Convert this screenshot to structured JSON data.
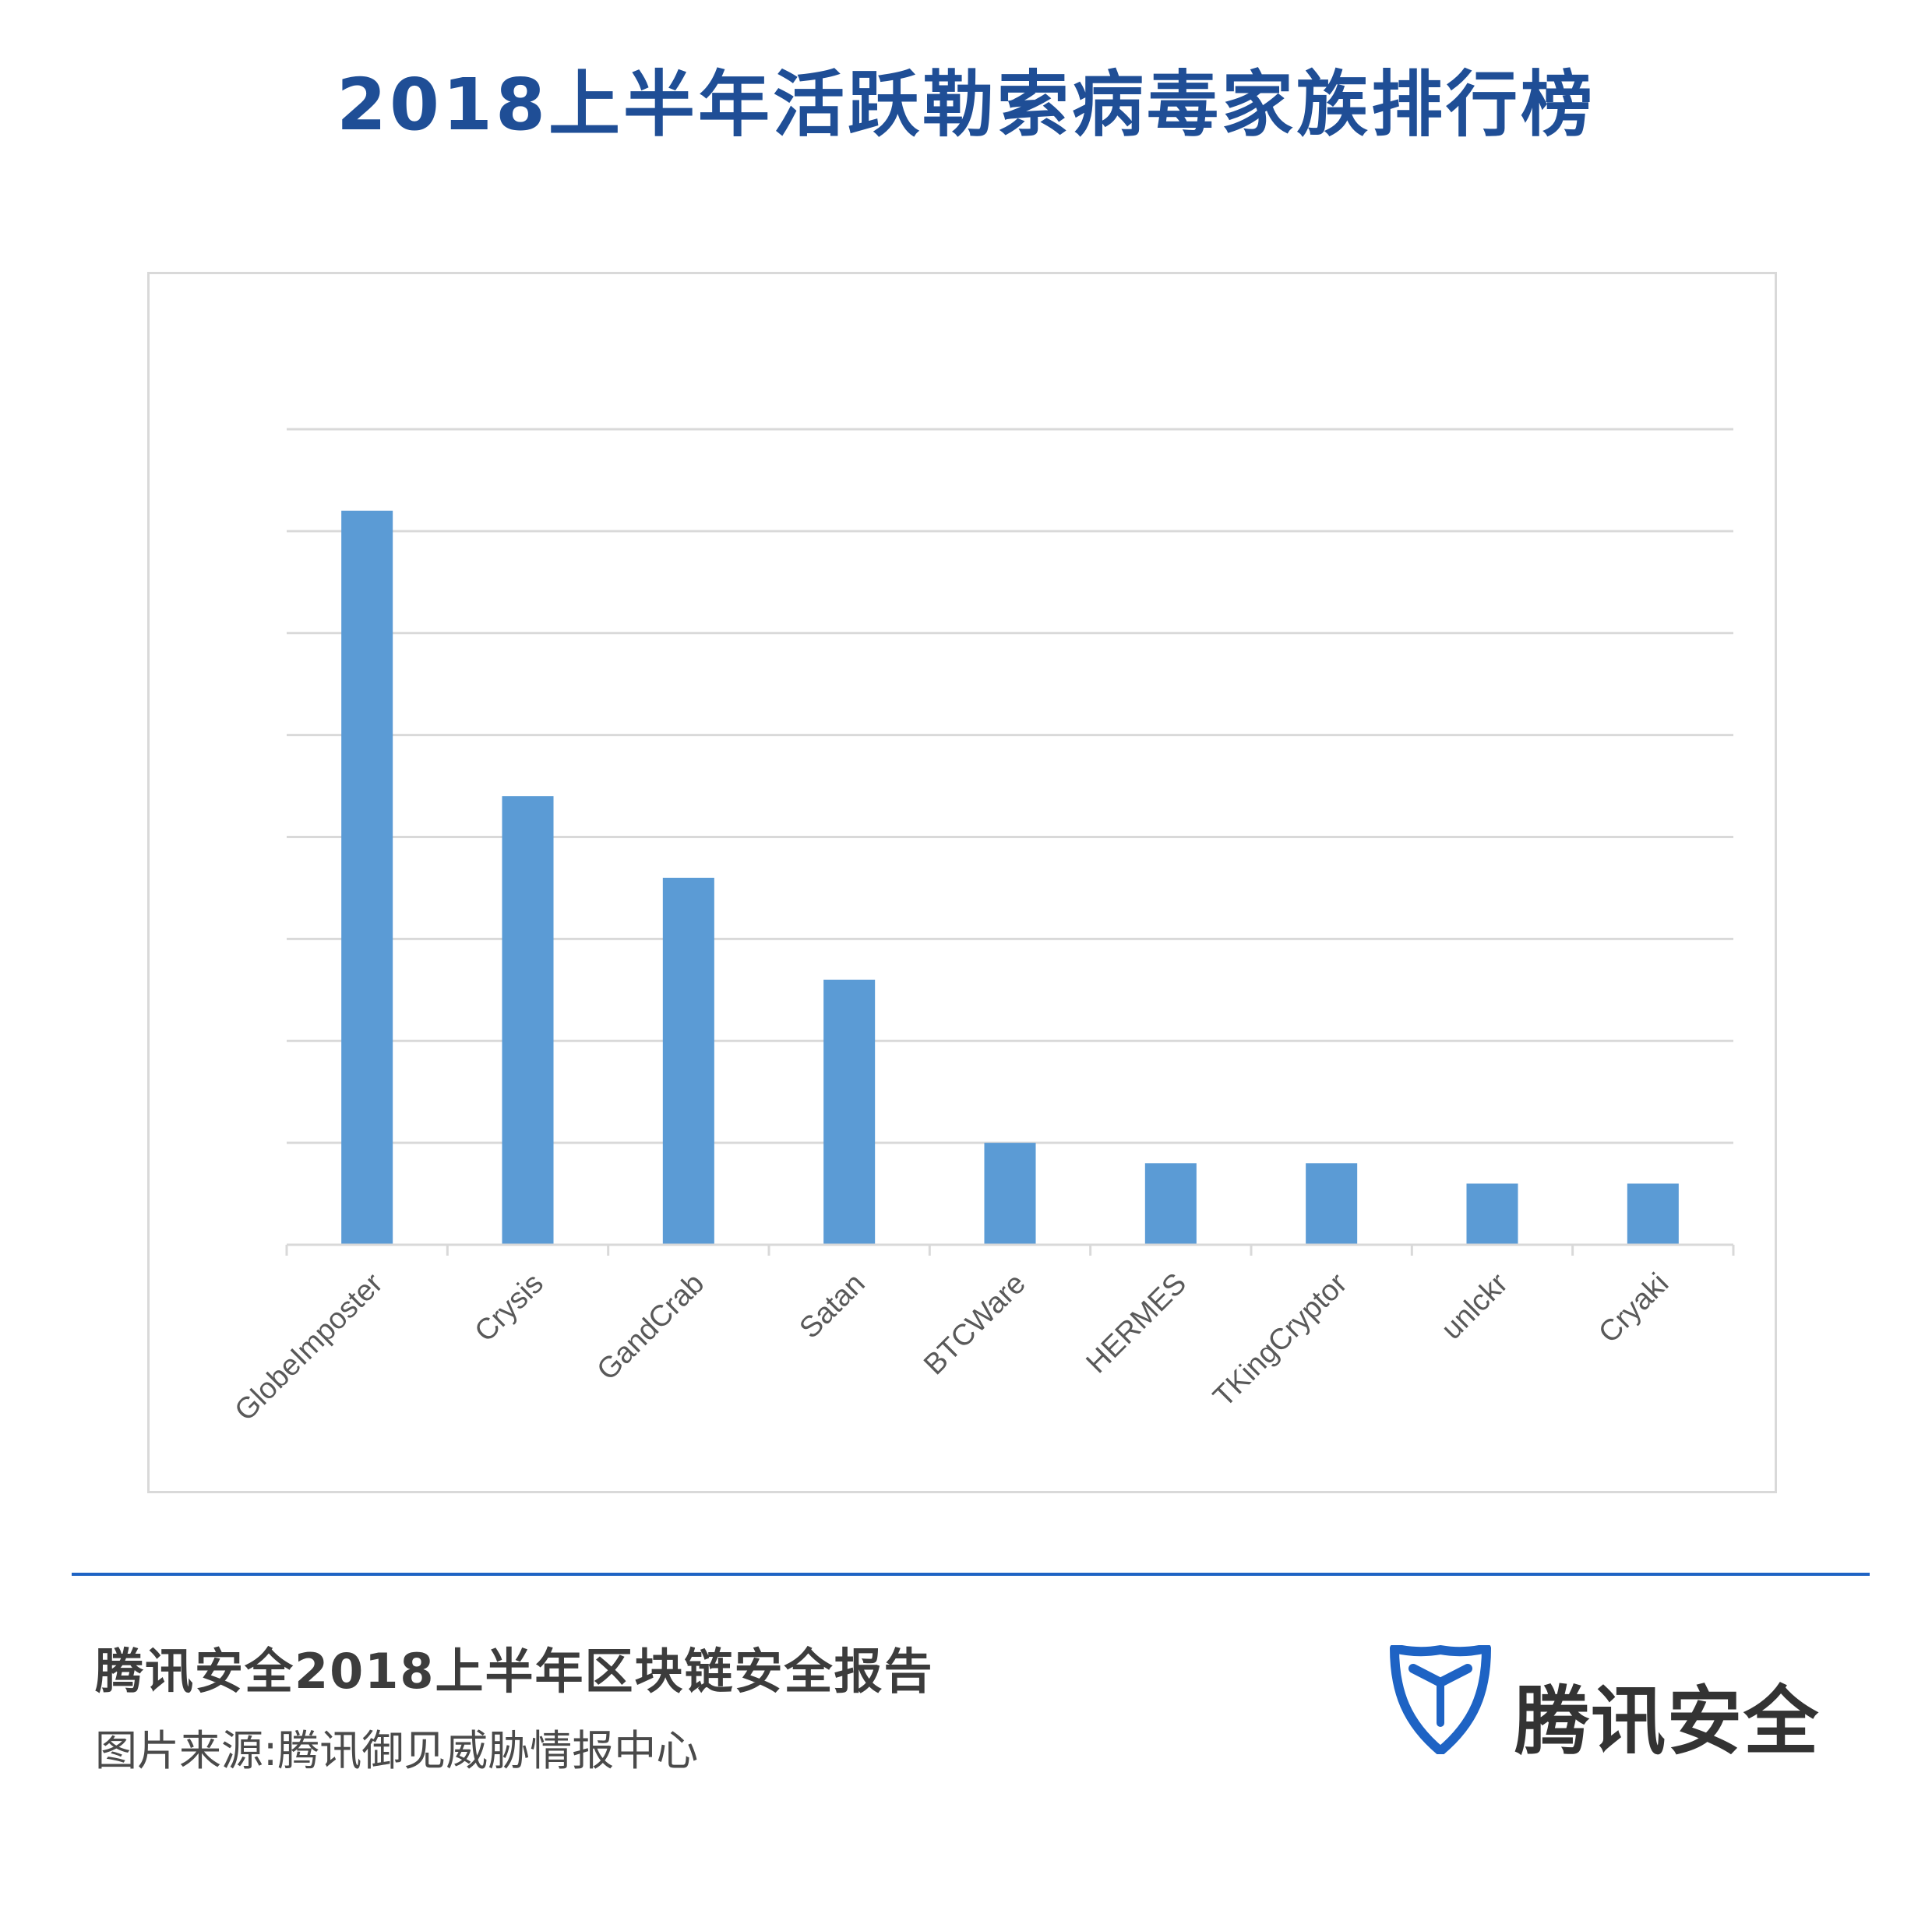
{
  "header": {
    "title": "2018上半年活跃勒索病毒家族排行榜"
  },
  "footer": {
    "report_title": "腾讯安全2018上半年区块链安全报告",
    "source": "图片来源:腾讯御见威胁情报中心",
    "brand_name": "腾讯安全",
    "brand_logo_icon": "tencent-security-shield-icon"
  },
  "colors": {
    "bar": "#5b9bd5",
    "title": "#1f4e96",
    "divider": "#1e63c4",
    "gridline": "#d9d9d9"
  },
  "chart_data": {
    "type": "bar",
    "categories": [
      "GlobeImposter",
      "Crysis",
      "GandCrab",
      "Satan",
      "BTCWare",
      "HERMES",
      "TKingCryptor",
      "unlckr",
      "Cryaki"
    ],
    "values": [
      7.2,
      4.4,
      3.6,
      2.6,
      1.0,
      0.8,
      0.8,
      0.6,
      0.6
    ],
    "ylim": [
      0,
      8
    ],
    "grid": true,
    "legend": "none",
    "y_tick_labels": "hidden",
    "x_label_rotation": -45,
    "title": "",
    "xlabel": "",
    "ylabel": ""
  }
}
